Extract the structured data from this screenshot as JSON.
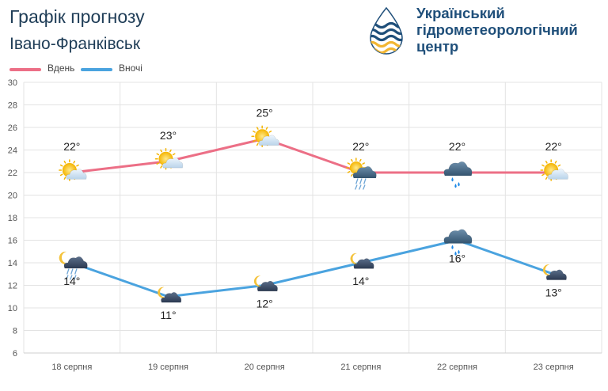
{
  "header": {
    "title": "Графік прогнозу",
    "city": "Івано-Франківськ"
  },
  "logo": {
    "org_line1": "Український",
    "org_line2": "гідрометеорологічний",
    "org_line3": "центр",
    "icon": "drop-wave-logo-icon"
  },
  "colors": {
    "day": "#ec6f86",
    "night": "#4aa3df",
    "grid": "#e3e3e3",
    "title": "#1f3d57",
    "org": "#1f4f7a"
  },
  "chart_data": {
    "type": "line",
    "categories": [
      "18 серпня",
      "19 серпня",
      "20 серпня",
      "21 серпня",
      "22 серпня",
      "23 серпня"
    ],
    "ylim": [
      6,
      30
    ],
    "yticks": [
      6,
      8,
      10,
      12,
      14,
      16,
      18,
      20,
      22,
      24,
      26,
      28,
      30
    ],
    "grid": true,
    "legend_position": "top-left",
    "series": [
      {
        "name": "Вдень",
        "values": [
          22,
          23,
          25,
          22,
          22,
          22
        ],
        "labels": [
          "22°",
          "23°",
          "25°",
          "22°",
          "22°",
          "22°"
        ],
        "icons": [
          "sun-cloud-icon",
          "sun-cloud-icon",
          "sun-cloud-icon",
          "sun-cloud-rain-icon",
          "rain-cloud-icon",
          "sun-cloud-icon"
        ]
      },
      {
        "name": "Вночі",
        "values": [
          14,
          11,
          12,
          14,
          16,
          13
        ],
        "labels": [
          "14°",
          "11°",
          "12°",
          "14°",
          "16°",
          "13°"
        ],
        "icons": [
          "moon-cloud-rain-icon",
          "moon-cloud-icon",
          "moon-cloud-icon",
          "moon-cloud-icon",
          "rain-cloud-icon",
          "moon-cloud-icon"
        ]
      }
    ]
  }
}
